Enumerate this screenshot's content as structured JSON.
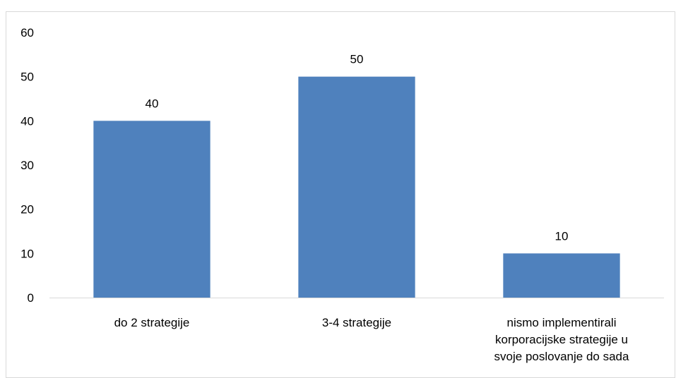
{
  "chart_data": {
    "type": "bar",
    "categories": [
      [
        "do 2 strategije"
      ],
      [
        "3-4 strategije"
      ],
      [
        "nismo implementirali",
        "korporacijske strategije u",
        "svoje poslovanje do sada"
      ]
    ],
    "values": [
      40,
      50,
      10
    ],
    "data_labels": [
      "40",
      "50",
      "10"
    ],
    "y_ticks": [
      "0",
      "10",
      "20",
      "30",
      "40",
      "50",
      "60"
    ],
    "ylim": [
      0,
      60
    ],
    "grid": false,
    "legend": "none",
    "bar_color": "#4f81bd",
    "axis_color": "#d9d9d9",
    "title": "",
    "xlabel": "",
    "ylabel": ""
  }
}
